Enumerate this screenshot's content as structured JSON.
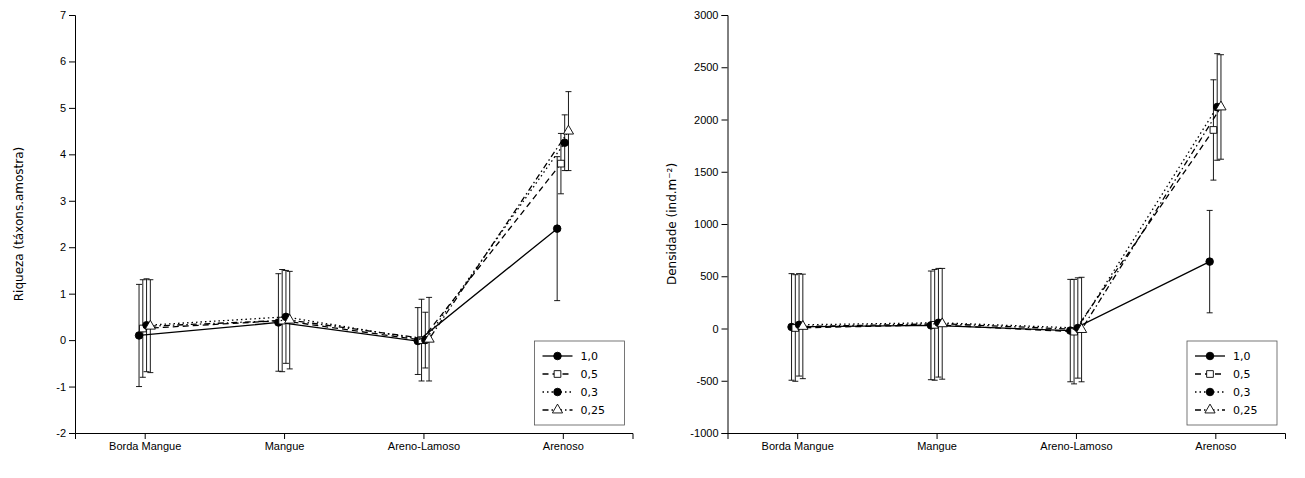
{
  "chart_data": [
    {
      "type": "line",
      "y_label": "Riqueza (táxons.amostra)",
      "categories": [
        "Borda Mangue",
        "Mangue",
        "Areno-Lamoso",
        "Arenoso"
      ],
      "series": [
        {
          "name": "1,0",
          "color": "black",
          "marker": "circle",
          "line_style": "solid",
          "values": [
            0.1,
            0.38,
            -0.02,
            2.4
          ],
          "errors": [
            1.1,
            1.05,
            0.72,
            1.55
          ]
        },
        {
          "name": "0,5",
          "color": "black",
          "marker": "square-open",
          "line_style": "dashed",
          "values": [
            0.25,
            0.42,
            0.0,
            3.8
          ],
          "errors": [
            1.05,
            1.1,
            0.88,
            0.65
          ]
        },
        {
          "name": "0,3",
          "color": "black",
          "marker": "circle",
          "line_style": "dotted",
          "values": [
            0.32,
            0.5,
            0.0,
            4.25
          ],
          "errors": [
            1.0,
            1.0,
            0.6,
            0.6
          ]
        },
        {
          "name": "0,25",
          "color": "black",
          "marker": "triangle-open",
          "line_style": "dashdot",
          "values": [
            0.3,
            0.43,
            0.02,
            4.5
          ],
          "errors": [
            1.0,
            1.05,
            0.9,
            0.85
          ]
        }
      ],
      "ylim": [
        -2,
        7
      ],
      "yticks": [
        -2,
        -1,
        0,
        1,
        2,
        3,
        4,
        5,
        6,
        7
      ],
      "grid": false,
      "legend": "lower right"
    },
    {
      "type": "line",
      "y_label": "Densidade (ind.m⁻²)",
      "categories": [
        "Borda Mangue",
        "Mangue",
        "Areno-Lamoso",
        "Arenoso"
      ],
      "series": [
        {
          "name": "1,0",
          "color": "black",
          "marker": "circle",
          "line_style": "solid",
          "values": [
            15,
            30,
            -20,
            640
          ],
          "errors": [
            510,
            520,
            490,
            490
          ]
        },
        {
          "name": "0,5",
          "color": "black",
          "marker": "square-open",
          "line_style": "dashed",
          "values": [
            5,
            35,
            -30,
            1900
          ],
          "errors": [
            510,
            530,
            500,
            480
          ]
        },
        {
          "name": "0,3",
          "color": "black",
          "marker": "circle",
          "line_style": "dotted",
          "values": [
            35,
            55,
            5,
            2120
          ],
          "errors": [
            490,
            520,
            480,
            510
          ]
        },
        {
          "name": "0,25",
          "color": "black",
          "marker": "triangle-open",
          "line_style": "dashdot",
          "values": [
            20,
            45,
            -10,
            2120
          ],
          "errors": [
            500,
            530,
            500,
            500
          ]
        }
      ],
      "ylim": [
        -1000,
        3000
      ],
      "yticks": [
        -1000,
        -500,
        0,
        500,
        1000,
        1500,
        2000,
        2500,
        3000
      ],
      "grid": false,
      "legend": "lower right"
    }
  ]
}
